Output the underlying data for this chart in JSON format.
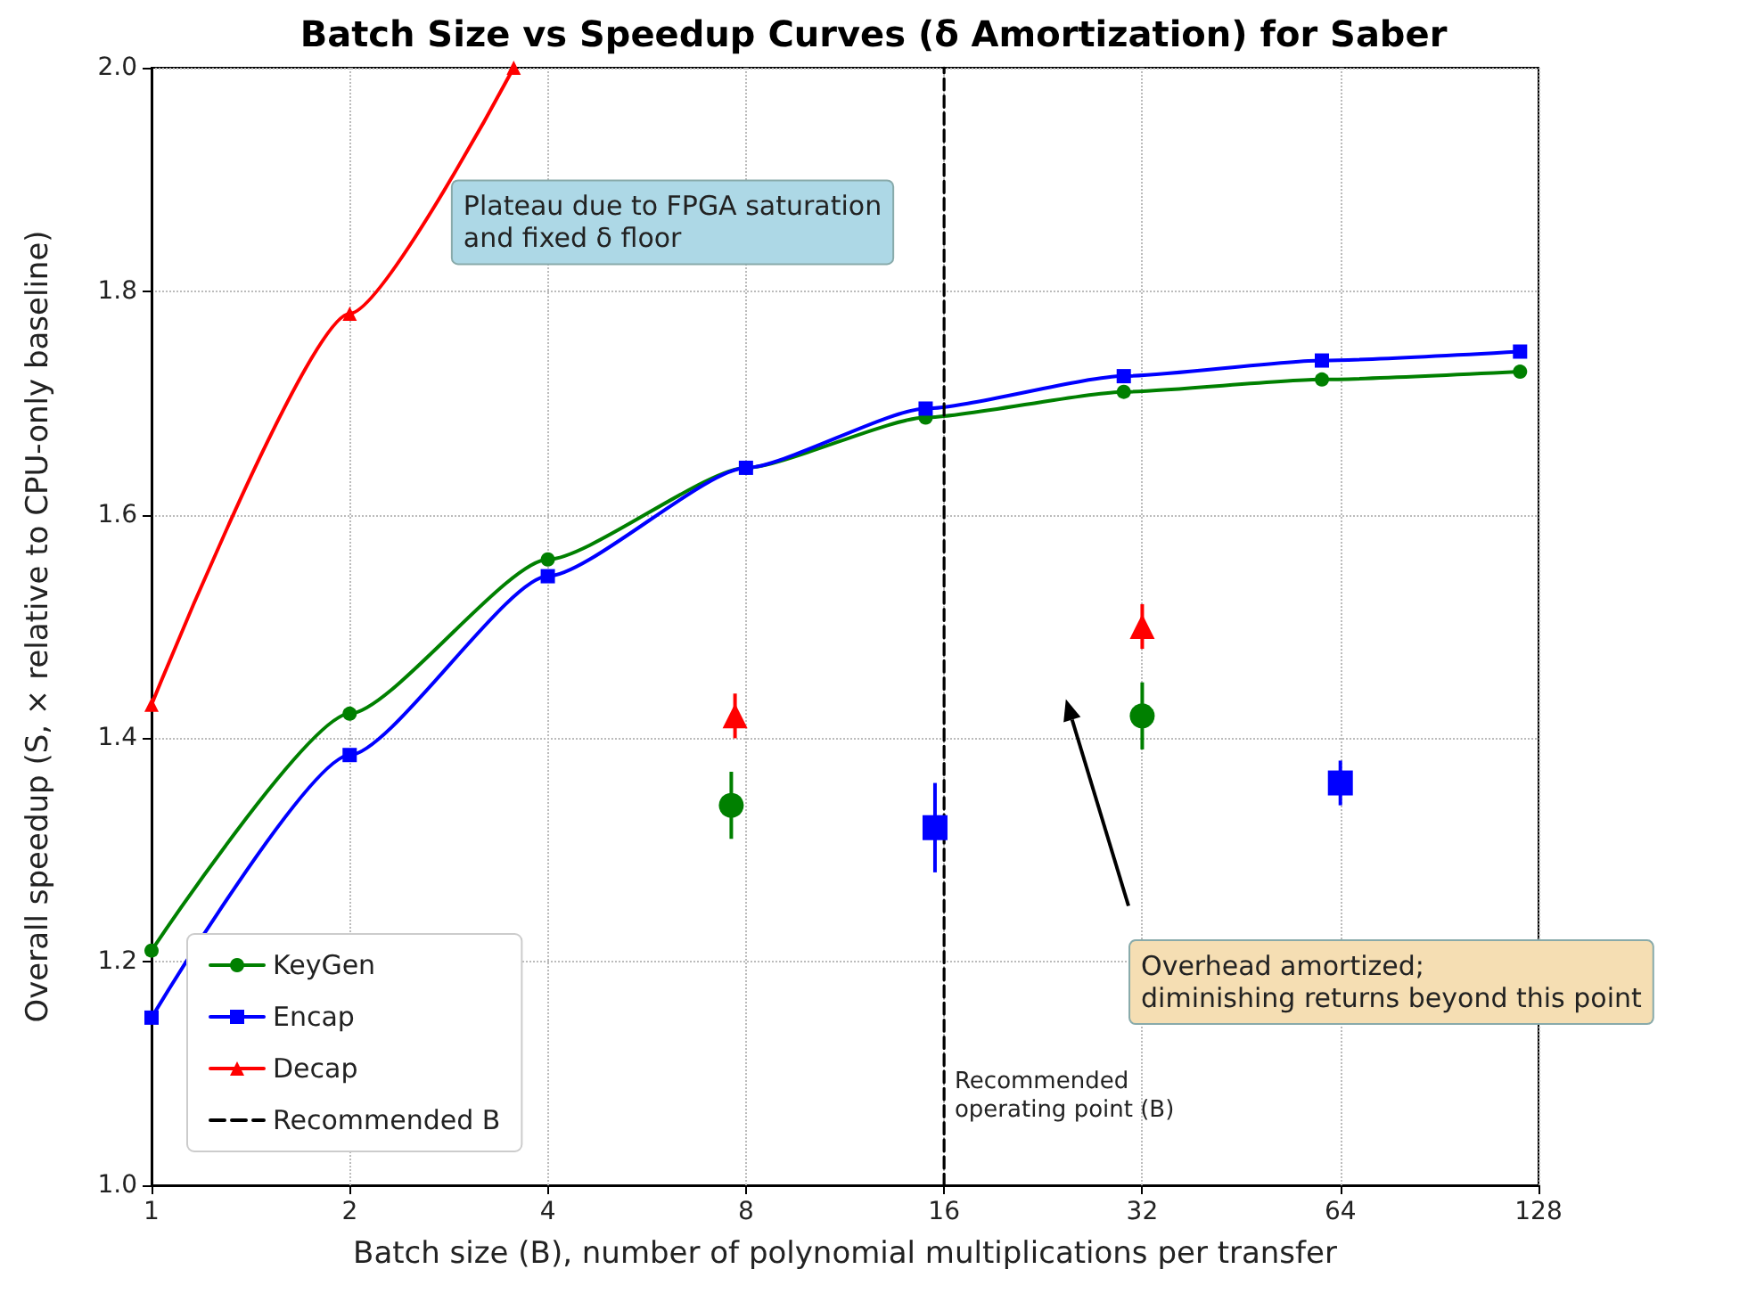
{
  "chart_data": {
    "type": "line",
    "title": "Batch Size vs Speedup Curves (δ Amortization) for Saber",
    "xlabel": "Batch size (B), number of polynomial multiplications per transfer",
    "ylabel": "Overall speedup (S, × relative to CPU-only baseline)",
    "log": "x",
    "xlim": [
      1,
      128
    ],
    "xticks": [
      1,
      2,
      4,
      8,
      16,
      32,
      64,
      128
    ],
    "ylim": [
      1.0,
      2.0
    ],
    "yticks": [
      {
        "value": 1,
        "label": "1.0"
      },
      1.2,
      1.4,
      1.6,
      1.8,
      {
        "value": 2,
        "label": "2.0"
      }
    ],
    "grid": true,
    "legend": "bottom left",
    "line_style": "solid",
    "series": [
      {
        "name": "KeyGen",
        "color": "#008000",
        "marker": "circle",
        "x": [
          1,
          2,
          4,
          8,
          15,
          30,
          60,
          120
        ],
        "values": [
          1.21,
          1.422,
          1.56,
          1.642,
          1.687,
          1.71,
          1.721,
          1.728
        ]
      },
      {
        "name": "Encap",
        "color": "#0000ff",
        "marker": "square",
        "x": [
          1,
          2,
          4,
          8,
          15,
          30,
          60,
          120
        ],
        "values": [
          1.15,
          1.385,
          1.545,
          1.642,
          1.695,
          1.724,
          1.738,
          1.746
        ]
      },
      {
        "name": "Decap",
        "color": "#ff0000",
        "marker": "triangle",
        "x": [
          1,
          2,
          3.55
        ],
        "values": [
          1.43,
          1.78,
          2.0
        ]
      },
      {
        "type": "scatter",
        "color": "#008000",
        "marker": "circle",
        "x": [
          7.6,
          32
        ],
        "values": [
          1.34,
          1.42
        ],
        "errors": [
          0.03,
          0.03
        ]
      },
      {
        "type": "scatter",
        "color": "#0000ff",
        "marker": "square",
        "x": [
          15.5,
          64
        ],
        "values": [
          1.32,
          1.36
        ],
        "errors": [
          0.04,
          0.02
        ]
      },
      {
        "type": "scatter",
        "color": "#ff0000",
        "marker": "triangle",
        "x": [
          7.7,
          32
        ],
        "values": [
          1.42,
          1.5
        ],
        "errors": [
          0.02,
          0.02
        ]
      },
      {
        "name": "Recommended B",
        "color": "#000000",
        "marker": "none",
        "line_style": "dashed",
        "x": [
          16,
          16
        ],
        "values": [
          1.0,
          2.0
        ]
      }
    ],
    "annotations": [
      "Plateau due to FPGA saturation\nand fixed δ floor",
      "Overhead amortized;\ndiminishing returns beyond this point",
      "Recommended\noperating point (B)"
    ]
  }
}
